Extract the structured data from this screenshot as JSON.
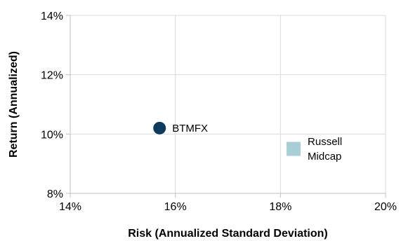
{
  "chart_data": {
    "type": "scatter",
    "title": "",
    "xlabel": "Risk (Annualized Standard Deviation)",
    "ylabel": "Return (Annualized)",
    "xlim": [
      14,
      20
    ],
    "ylim": [
      8,
      14
    ],
    "x_ticks": [
      14,
      16,
      18,
      20
    ],
    "y_ticks": [
      8,
      10,
      12,
      14
    ],
    "x_tick_labels": [
      "14%",
      "16%",
      "18%",
      "20%"
    ],
    "y_tick_labels": [
      "8%",
      "10%",
      "12%",
      "14%"
    ],
    "grid": true,
    "points": [
      {
        "label_lines": [
          "BTMFX"
        ],
        "x": 15.7,
        "y": 10.2,
        "marker": "circle",
        "color": "#0f3a5f",
        "label_position": "right"
      },
      {
        "label_lines": [
          "Russell",
          "Midcap"
        ],
        "x": 18.25,
        "y": 9.5,
        "marker": "square",
        "color": "#a8ced6",
        "label_position": "right"
      }
    ]
  }
}
